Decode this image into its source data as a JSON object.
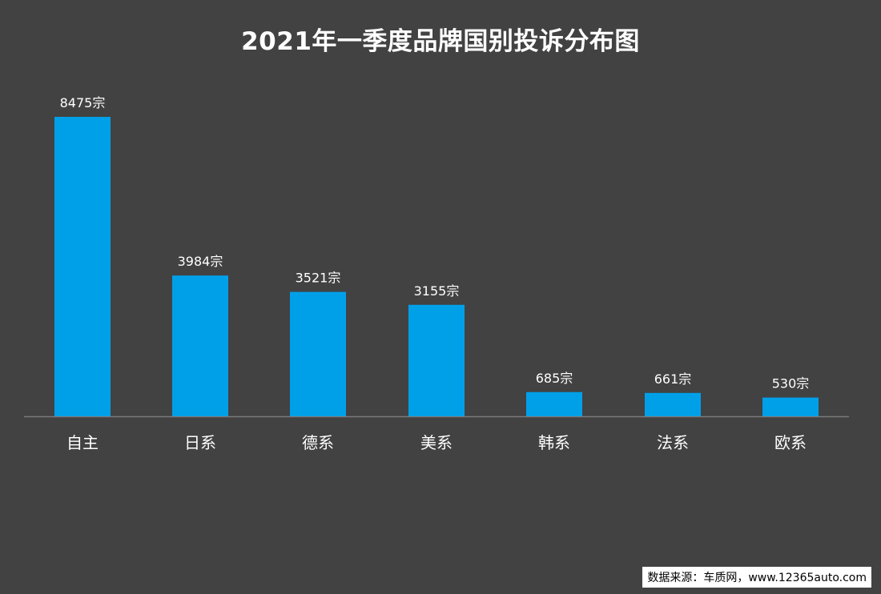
{
  "title": "2021年一季度品牌国别投诉分布图",
  "source": "数据来源：车质网，www.12365auto.com",
  "colors": {
    "background": "#424242",
    "bar": "#00a0e9",
    "axis": "#7a7a7a",
    "text": "#ffffff"
  },
  "chart_data": {
    "type": "bar",
    "title": "2021年一季度品牌国别投诉分布图",
    "xlabel": "",
    "ylabel": "",
    "categories": [
      "自主",
      "日系",
      "德系",
      "美系",
      "韩系",
      "法系",
      "欧系"
    ],
    "values": [
      8475,
      3984,
      3521,
      3155,
      685,
      661,
      530
    ],
    "data_labels": [
      "8475宗",
      "3984宗",
      "3521宗",
      "3155宗",
      "685宗",
      "661宗",
      "530宗"
    ],
    "ylim": [
      0,
      8475
    ],
    "grid": false,
    "legend": "none"
  }
}
